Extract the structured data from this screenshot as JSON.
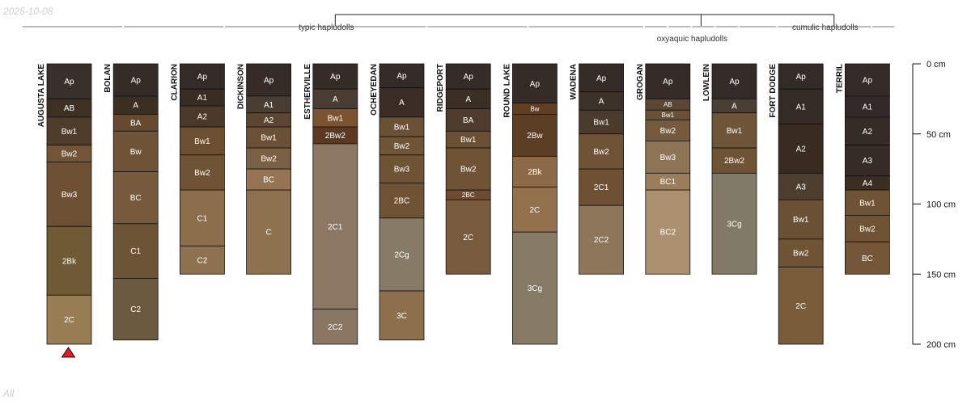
{
  "date_stamp": "2025-10-08",
  "corner_note": "All",
  "chart_data": {
    "type": "soil-profile-sketch",
    "depth_unit": "cm",
    "ylim": [
      0,
      200
    ],
    "depth_ticks": [
      {
        "depth": 0,
        "label": "0 cm"
      },
      {
        "depth": 50,
        "label": "50 cm"
      },
      {
        "depth": 100,
        "label": "100 cm"
      },
      {
        "depth": 150,
        "label": "150 cm"
      },
      {
        "depth": 200,
        "label": "200 cm"
      }
    ],
    "groups": [
      {
        "label": "typic hapludolls",
        "profiles": [
          0,
          8
        ]
      },
      {
        "label": "oxyaquic hapludolls",
        "profiles": [
          9,
          10
        ]
      },
      {
        "label": "cumulic hapludolls",
        "profiles": [
          11,
          12
        ]
      }
    ],
    "marker": {
      "profile": 0,
      "color": "#e41a1c"
    },
    "profiles": [
      {
        "name": "AUGUSTA LAKE",
        "horizons": [
          {
            "name": "Ap",
            "top": 0,
            "bottom": 25,
            "color": "#3a302b"
          },
          {
            "name": "AB",
            "top": 25,
            "bottom": 38,
            "color": "#3d3124"
          },
          {
            "name": "Bw1",
            "top": 38,
            "bottom": 58,
            "color": "#4f3d2c"
          },
          {
            "name": "Bw2",
            "top": 58,
            "bottom": 70,
            "color": "#725536"
          },
          {
            "name": "Bw3",
            "top": 70,
            "bottom": 116,
            "color": "#6e5133"
          },
          {
            "name": "2Bk",
            "top": 116,
            "bottom": 165,
            "color": "#6e5b36"
          },
          {
            "name": "2C",
            "top": 165,
            "bottom": 200,
            "color": "#987d54"
          }
        ]
      },
      {
        "name": "BOLAN",
        "horizons": [
          {
            "name": "Ap",
            "top": 0,
            "bottom": 23,
            "color": "#352c28"
          },
          {
            "name": "A",
            "top": 23,
            "bottom": 36,
            "color": "#3b2e22"
          },
          {
            "name": "BA",
            "top": 36,
            "bottom": 48,
            "color": "#654a30"
          },
          {
            "name": "Bw",
            "top": 48,
            "bottom": 77,
            "color": "#6e5335"
          },
          {
            "name": "BC",
            "top": 77,
            "bottom": 114,
            "color": "#755b3b"
          },
          {
            "name": "C1",
            "top": 114,
            "bottom": 153,
            "color": "#6c5436"
          },
          {
            "name": "C2",
            "top": 153,
            "bottom": 197,
            "color": "#6c5a40"
          }
        ]
      },
      {
        "name": "CLARION",
        "horizons": [
          {
            "name": "Ap",
            "top": 0,
            "bottom": 18,
            "color": "#332b28"
          },
          {
            "name": "A1",
            "top": 18,
            "bottom": 30,
            "color": "#392c23"
          },
          {
            "name": "A2",
            "top": 30,
            "bottom": 45,
            "color": "#4a3929"
          },
          {
            "name": "Bw1",
            "top": 45,
            "bottom": 65,
            "color": "#6a4f31"
          },
          {
            "name": "Bw2",
            "top": 65,
            "bottom": 90,
            "color": "#6e5334"
          },
          {
            "name": "C1",
            "top": 90,
            "bottom": 130,
            "color": "#8c6e4b"
          },
          {
            "name": "C2",
            "top": 130,
            "bottom": 150,
            "color": "#8e7250"
          }
        ]
      },
      {
        "name": "DICKINSON",
        "horizons": [
          {
            "name": "Ap",
            "top": 0,
            "bottom": 23,
            "color": "#352c28"
          },
          {
            "name": "A1",
            "top": 23,
            "bottom": 35,
            "color": "#4a3d32"
          },
          {
            "name": "A2",
            "top": 35,
            "bottom": 45,
            "color": "#5a4633"
          },
          {
            "name": "Bw1",
            "top": 45,
            "bottom": 60,
            "color": "#6a5035"
          },
          {
            "name": "Bw2",
            "top": 60,
            "bottom": 75,
            "color": "#7a6044"
          },
          {
            "name": "BC",
            "top": 75,
            "bottom": 90,
            "color": "#947452"
          },
          {
            "name": "C",
            "top": 90,
            "bottom": 150,
            "color": "#8e7250"
          }
        ]
      },
      {
        "name": "ESTHERVILLE",
        "horizons": [
          {
            "name": "Ap",
            "top": 0,
            "bottom": 18,
            "color": "#352c28"
          },
          {
            "name": "A",
            "top": 18,
            "bottom": 32,
            "color": "#4a3d33"
          },
          {
            "name": "Bw1",
            "top": 32,
            "bottom": 45,
            "color": "#7b5330"
          },
          {
            "name": "2Bw2",
            "top": 45,
            "bottom": 57,
            "color": "#5c3a22"
          },
          {
            "name": "2C1",
            "top": 57,
            "bottom": 175,
            "color": "#8c7762"
          },
          {
            "name": "2C2",
            "top": 175,
            "bottom": 200,
            "color": "#8a7763"
          }
        ]
      },
      {
        "name": "OCHEYEDAN",
        "horizons": [
          {
            "name": "Ap",
            "top": 0,
            "bottom": 17,
            "color": "#332b28"
          },
          {
            "name": "A",
            "top": 17,
            "bottom": 38,
            "color": "#392d25"
          },
          {
            "name": "Bw1",
            "top": 38,
            "bottom": 52,
            "color": "#6a5035"
          },
          {
            "name": "Bw2",
            "top": 52,
            "bottom": 65,
            "color": "#6e5538"
          },
          {
            "name": "Bw3",
            "top": 65,
            "bottom": 85,
            "color": "#6e5334"
          },
          {
            "name": "2BC",
            "top": 85,
            "bottom": 110,
            "color": "#6e5334"
          },
          {
            "name": "2Cg",
            "top": 110,
            "bottom": 162,
            "color": "#857b67"
          },
          {
            "name": "3C",
            "top": 162,
            "bottom": 197,
            "color": "#8e6f4b"
          }
        ]
      },
      {
        "name": "RIDGEPORT",
        "horizons": [
          {
            "name": "Ap",
            "top": 0,
            "bottom": 18,
            "color": "#352c28"
          },
          {
            "name": "A",
            "top": 18,
            "bottom": 32,
            "color": "#3b2e22"
          },
          {
            "name": "BA",
            "top": 32,
            "bottom": 48,
            "color": "#4e3d2d"
          },
          {
            "name": "Bw1",
            "top": 48,
            "bottom": 60,
            "color": "#6a4f33"
          },
          {
            "name": "Bw2",
            "top": 60,
            "bottom": 90,
            "color": "#6e5334"
          },
          {
            "name": "2BC",
            "top": 90,
            "bottom": 97,
            "color": "#6e4c32"
          },
          {
            "name": "2C",
            "top": 97,
            "bottom": 150,
            "color": "#785a3c"
          }
        ]
      },
      {
        "name": "ROUND LAKE",
        "horizons": [
          {
            "name": "Ap",
            "top": 0,
            "bottom": 28,
            "color": "#352c28"
          },
          {
            "name": "Bw",
            "top": 28,
            "bottom": 36,
            "color": "#5e3f22"
          },
          {
            "name": "2Bw",
            "top": 36,
            "bottom": 66,
            "color": "#5c3e24"
          },
          {
            "name": "2Bk",
            "top": 66,
            "bottom": 88,
            "color": "#8c6a48"
          },
          {
            "name": "2C",
            "top": 88,
            "bottom": 120,
            "color": "#93714d"
          },
          {
            "name": "3Cg",
            "top": 120,
            "bottom": 200,
            "color": "#857a66"
          }
        ]
      },
      {
        "name": "WADENA",
        "horizons": [
          {
            "name": "Ap",
            "top": 0,
            "bottom": 20,
            "color": "#352c28"
          },
          {
            "name": "A",
            "top": 20,
            "bottom": 33,
            "color": "#3d3229"
          },
          {
            "name": "Bw1",
            "top": 33,
            "bottom": 50,
            "color": "#4b3b2c"
          },
          {
            "name": "Bw2",
            "top": 50,
            "bottom": 75,
            "color": "#6e5334"
          },
          {
            "name": "2C1",
            "top": 75,
            "bottom": 101,
            "color": "#6e5133"
          },
          {
            "name": "2C2",
            "top": 101,
            "bottom": 150,
            "color": "#8d7659"
          }
        ]
      },
      {
        "name": "GROGAN",
        "horizons": [
          {
            "name": "Ap",
            "top": 0,
            "bottom": 25,
            "color": "#352c28"
          },
          {
            "name": "AB",
            "top": 25,
            "bottom": 33,
            "color": "#5a4633"
          },
          {
            "name": "Bw1",
            "top": 33,
            "bottom": 40,
            "color": "#6a5035"
          },
          {
            "name": "Bw2",
            "top": 40,
            "bottom": 55,
            "color": "#755a3d"
          },
          {
            "name": "Bw3",
            "top": 55,
            "bottom": 78,
            "color": "#8c7454"
          },
          {
            "name": "BC1",
            "top": 78,
            "bottom": 90,
            "color": "#9a7e5a"
          },
          {
            "name": "BC2",
            "top": 90,
            "bottom": 150,
            "color": "#ab9170"
          }
        ]
      },
      {
        "name": "LOWLEIN",
        "horizons": [
          {
            "name": "Ap",
            "top": 0,
            "bottom": 25,
            "color": "#332b28"
          },
          {
            "name": "A",
            "top": 25,
            "bottom": 35,
            "color": "#4a3f36"
          },
          {
            "name": "Bw1",
            "top": 35,
            "bottom": 60,
            "color": "#6e5538"
          },
          {
            "name": "2Bw2",
            "top": 60,
            "bottom": 78,
            "color": "#6e5334"
          },
          {
            "name": "3Cg",
            "top": 78,
            "bottom": 150,
            "color": "#807a66"
          }
        ]
      },
      {
        "name": "FORT DODGE",
        "horizons": [
          {
            "name": "Ap",
            "top": 0,
            "bottom": 18,
            "color": "#332b28"
          },
          {
            "name": "A1",
            "top": 18,
            "bottom": 43,
            "color": "#352b25"
          },
          {
            "name": "A2",
            "top": 43,
            "bottom": 78,
            "color": "#382b20"
          },
          {
            "name": "A3",
            "top": 78,
            "bottom": 97,
            "color": "#4e3e30"
          },
          {
            "name": "Bw1",
            "top": 97,
            "bottom": 125,
            "color": "#6a5035"
          },
          {
            "name": "Bw2",
            "top": 125,
            "bottom": 145,
            "color": "#6e5334"
          },
          {
            "name": "2C",
            "top": 145,
            "bottom": 200,
            "color": "#7a5c3b"
          }
        ]
      },
      {
        "name": "TERRIL",
        "horizons": [
          {
            "name": "Ap",
            "top": 0,
            "bottom": 23,
            "color": "#332b28"
          },
          {
            "name": "A1",
            "top": 23,
            "bottom": 38,
            "color": "#33292a"
          },
          {
            "name": "A2",
            "top": 38,
            "bottom": 58,
            "color": "#352b27"
          },
          {
            "name": "A3",
            "top": 58,
            "bottom": 80,
            "color": "#352b27"
          },
          {
            "name": "A4",
            "top": 80,
            "bottom": 90,
            "color": "#3b2e22"
          },
          {
            "name": "Bw1",
            "top": 90,
            "bottom": 108,
            "color": "#6e5334"
          },
          {
            "name": "Bw2",
            "top": 108,
            "bottom": 127,
            "color": "#6e5334"
          },
          {
            "name": "BC",
            "top": 127,
            "bottom": 150,
            "color": "#745638"
          }
        ]
      }
    ]
  }
}
